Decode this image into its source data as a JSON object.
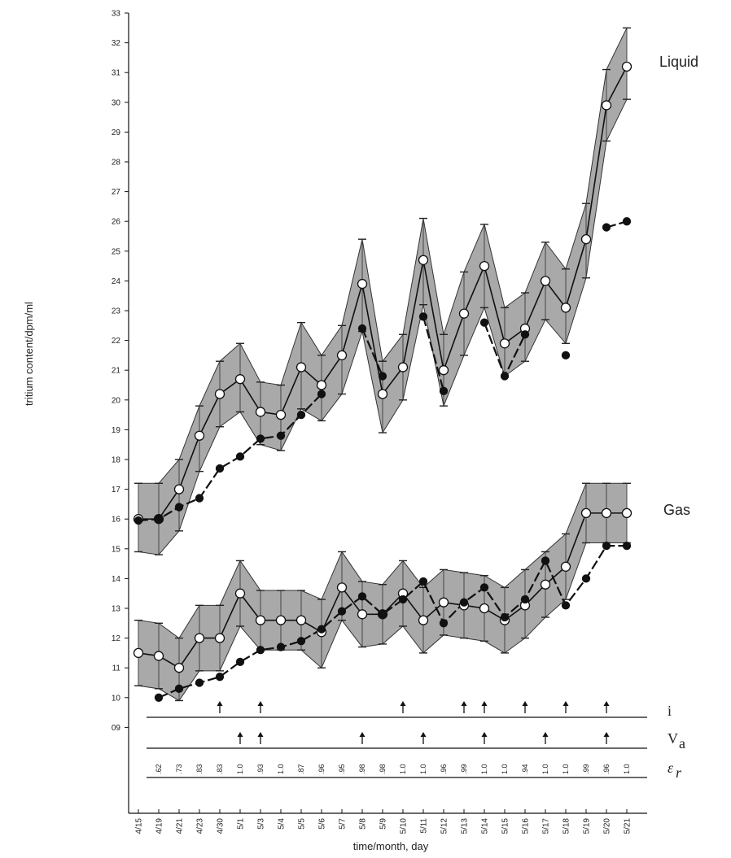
{
  "chart_data": {
    "type": "line",
    "title": "",
    "xlabel": "time/month, day",
    "ylabel": "tritium content/dpm/ml",
    "ylim": [
      9,
      33
    ],
    "y_ticks": [
      {
        "v": 10,
        "label": "10"
      },
      {
        "v": 11,
        "label": "11"
      },
      {
        "v": 12,
        "label": "12"
      },
      {
        "v": 13,
        "label": "13"
      },
      {
        "v": 14,
        "label": "14"
      },
      {
        "v": 15,
        "label": "15"
      },
      {
        "v": 16,
        "label": "16"
      },
      {
        "v": 17,
        "label": "17"
      },
      {
        "v": 18,
        "label": "18"
      },
      {
        "v": 19,
        "label": "19"
      },
      {
        "v": 20,
        "label": "20"
      },
      {
        "v": 21,
        "label": "21"
      },
      {
        "v": 22,
        "label": "22"
      },
      {
        "v": 23,
        "label": "23"
      },
      {
        "v": 24,
        "label": "24"
      },
      {
        "v": 25,
        "label": "25"
      },
      {
        "v": 26,
        "label": "26"
      },
      {
        "v": 27,
        "label": "27"
      },
      {
        "v": 28,
        "label": "28"
      },
      {
        "v": 29,
        "label": "29"
      },
      {
        "v": 30,
        "label": "30"
      },
      {
        "v": 31,
        "label": "31"
      },
      {
        "v": 32,
        "label": "32"
      },
      {
        "v": 33,
        "label": "33"
      },
      {
        "v": 9,
        "label": "09"
      }
    ],
    "categories": [
      "4/15",
      "4/19",
      "4/21",
      "4/23",
      "4/30",
      "5/1",
      "5/3",
      "5/4",
      "5/5",
      "5/6",
      "5/7",
      "5/8",
      "5/9",
      "5/10",
      "5/11",
      "5/12",
      "5/13",
      "5/14",
      "5/15",
      "5/16",
      "5/17",
      "5/18",
      "5/19",
      "5/20",
      "5/21"
    ],
    "series": [
      {
        "name": "Liquid",
        "marker": "open",
        "values": [
          16.0,
          16.0,
          17.0,
          18.8,
          20.2,
          20.7,
          19.6,
          19.5,
          21.1,
          20.5,
          21.5,
          23.9,
          20.2,
          21.1,
          24.7,
          21.0,
          22.9,
          24.5,
          21.9,
          22.4,
          24.0,
          23.1,
          25.4,
          29.9,
          31.2
        ],
        "upper": [
          17.2,
          17.2,
          18.0,
          19.8,
          21.3,
          21.9,
          20.6,
          20.5,
          22.6,
          21.5,
          22.5,
          25.4,
          21.3,
          22.2,
          26.1,
          22.2,
          24.3,
          25.9,
          23.1,
          23.6,
          25.3,
          24.4,
          26.6,
          31.1,
          32.5
        ],
        "lower": [
          14.9,
          14.8,
          15.6,
          17.6,
          19.1,
          19.6,
          18.5,
          18.3,
          19.7,
          19.3,
          20.2,
          22.3,
          18.9,
          20.0,
          23.2,
          19.8,
          21.5,
          23.1,
          20.8,
          21.3,
          22.7,
          21.9,
          24.1,
          28.7,
          30.1
        ]
      },
      {
        "name": "",
        "marker": "filled",
        "values": [
          15.95,
          16.0,
          16.4,
          16.7,
          17.7,
          18.1,
          18.7,
          18.8,
          19.5,
          20.2,
          null,
          22.4,
          20.8,
          null,
          22.8,
          20.3,
          null,
          22.6,
          20.8,
          22.2,
          null,
          21.5,
          null,
          25.8,
          26.0
        ]
      },
      {
        "name": "Gas",
        "marker": "open",
        "values": [
          11.5,
          11.4,
          11.0,
          12.0,
          12.0,
          13.5,
          12.6,
          12.6,
          12.6,
          12.2,
          13.7,
          12.8,
          12.8,
          13.5,
          12.6,
          13.2,
          13.1,
          13.0,
          12.6,
          13.1,
          13.8,
          14.4,
          16.2,
          16.2,
          16.2
        ],
        "upper": [
          12.6,
          12.5,
          12.0,
          13.1,
          13.1,
          14.6,
          13.6,
          13.6,
          13.6,
          13.3,
          14.9,
          13.9,
          13.8,
          14.6,
          13.7,
          14.3,
          14.2,
          14.1,
          13.7,
          14.3,
          14.9,
          15.5,
          17.2,
          17.2,
          17.2
        ],
        "lower": [
          10.4,
          10.3,
          9.9,
          10.9,
          10.9,
          12.4,
          11.6,
          11.6,
          11.6,
          11.0,
          12.6,
          11.7,
          11.8,
          12.4,
          11.5,
          12.1,
          12.0,
          11.9,
          11.5,
          12.0,
          12.7,
          13.3,
          15.2,
          15.2,
          15.2
        ]
      },
      {
        "name": "",
        "marker": "filled",
        "values": [
          null,
          10.0,
          10.3,
          10.5,
          10.7,
          11.2,
          11.6,
          11.7,
          11.9,
          12.3,
          12.9,
          13.4,
          12.8,
          13.3,
          13.9,
          12.5,
          13.2,
          13.7,
          12.7,
          13.3,
          14.6,
          13.1,
          14.0,
          15.1,
          15.1
        ]
      }
    ],
    "arrows_i": [
      "4/30",
      "5/3",
      "5/10",
      "5/13",
      "5/14",
      "5/16",
      "5/18",
      "5/20"
    ],
    "arrows_va": [
      "5/1",
      "5/3",
      "5/8",
      "5/11",
      "5/14",
      "5/17",
      "5/20"
    ],
    "epsilon_values": [
      {
        "at": "4/19",
        "label": ".62"
      },
      {
        "at": "4/21",
        "label": ".73"
      },
      {
        "at": "4/23",
        "label": ".83"
      },
      {
        "at": "4/30",
        "label": ".83"
      },
      {
        "at": "5/1",
        "label": "1.0"
      },
      {
        "at": "5/3",
        "label": ".93"
      },
      {
        "at": "5/4",
        "label": "1.0"
      },
      {
        "at": "5/5",
        "label": ".87"
      },
      {
        "at": "5/6",
        "label": ".96"
      },
      {
        "at": "5/7",
        "label": ".95"
      },
      {
        "at": "5/8",
        "label": ".98"
      },
      {
        "at": "5/9",
        "label": ".98"
      },
      {
        "at": "5/10",
        "label": "1.0"
      },
      {
        "at": "5/11",
        "label": "1.0"
      },
      {
        "at": "5/12",
        "label": ".96"
      },
      {
        "at": "5/13",
        "label": ".99"
      },
      {
        "at": "5/14",
        "label": "1.0"
      },
      {
        "at": "5/15",
        "label": "1.0"
      },
      {
        "at": "5/16",
        "label": ".94"
      },
      {
        "at": "5/17",
        "label": "1.0"
      },
      {
        "at": "5/18",
        "label": "1.0"
      },
      {
        "at": "5/19",
        "label": ".99"
      },
      {
        "at": "5/20",
        "label": ".96"
      },
      {
        "at": "5/21",
        "label": "1.0"
      }
    ],
    "row_labels": {
      "i": "i",
      "va_main": "V",
      "va_sub": "a",
      "eps_main": "ε",
      "eps_sub": "r"
    },
    "series_labels": {
      "liquid": "Liquid",
      "gas": "Gas"
    },
    "colors": {
      "band": "#a9a9a9",
      "line": "#111111",
      "open_marker": "#ffffff"
    }
  }
}
